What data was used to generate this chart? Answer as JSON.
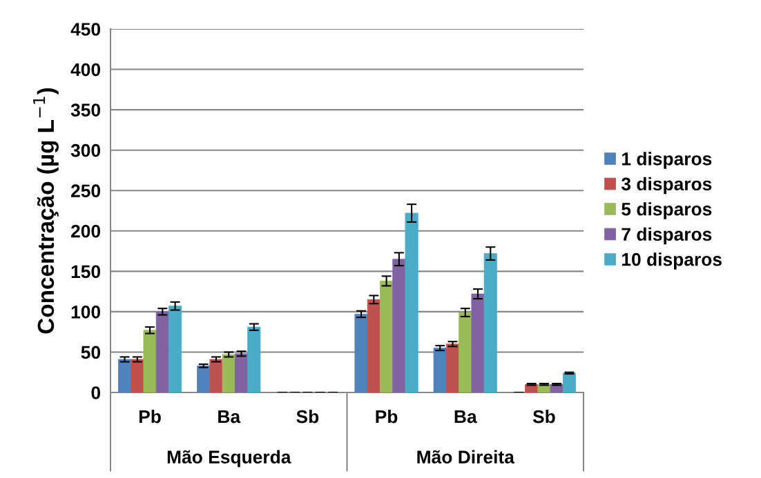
{
  "chart_data": {
    "type": "bar",
    "ylabel": "Concentração (µg L$^{−1}$)",
    "categories": [
      "Pb",
      "Ba",
      "Sb",
      "Pb",
      "Ba",
      "Sb"
    ],
    "annotations": [
      "Mão Esquerda",
      "Mão Direita"
    ],
    "series": [
      {
        "name": "1 disparos",
        "color": "#4f81bd",
        "values": [
          41,
          33,
          0,
          97,
          55,
          0
        ],
        "errors": [
          3,
          2,
          0,
          4,
          3,
          0
        ]
      },
      {
        "name": "3 disparos",
        "color": "#c0504d",
        "values": [
          41,
          41,
          0,
          115,
          60,
          10
        ],
        "errors": [
          3,
          3,
          0,
          5,
          3,
          1
        ]
      },
      {
        "name": "5 disparos",
        "color": "#9bbb59",
        "values": [
          77,
          47,
          0,
          138,
          99,
          10
        ],
        "errors": [
          4,
          3,
          0,
          6,
          5,
          1
        ]
      },
      {
        "name": "7 disparos",
        "color": "#8064a2",
        "values": [
          100,
          48,
          0,
          165,
          122,
          10
        ],
        "errors": [
          4,
          3,
          0,
          8,
          6,
          1
        ]
      },
      {
        "name": "10 disparos",
        "color": "#4bacc6",
        "values": [
          107,
          81,
          0,
          222,
          172,
          24
        ],
        "errors": [
          5,
          4,
          0,
          11,
          8,
          1
        ]
      }
    ],
    "ylim": [
      0,
      450
    ],
    "yticks": [
      0,
      50,
      100,
      150,
      200,
      250,
      300,
      350,
      400,
      450
    ],
    "grid": "y",
    "legend": "right"
  }
}
